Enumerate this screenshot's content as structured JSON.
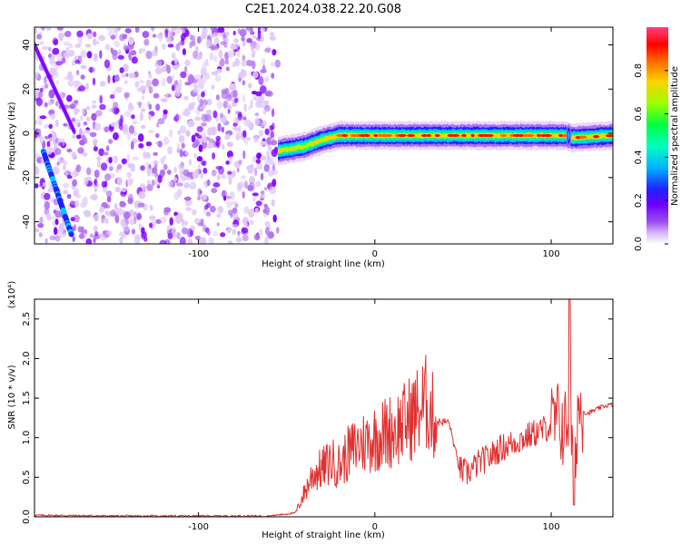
{
  "title": "C2E1.2024.038.22.20.G08",
  "colors": {
    "snr_line": "#e03030",
    "colormap": [
      "#ffffff",
      "#e0c8f8",
      "#b070f0",
      "#8000ff",
      "#2020ff",
      "#00c8ff",
      "#00ff80",
      "#a0ff00",
      "#ffd000",
      "#ff6000",
      "#ff0000",
      "#ff60a0"
    ]
  },
  "chart_data": [
    {
      "type": "heatmap",
      "xlabel": "Height of straight line (km)",
      "ylabel": "Frequency (Hz)",
      "xlim": [
        -193,
        135
      ],
      "ylim": [
        -50,
        48
      ],
      "xticks": [
        -100,
        0,
        100
      ],
      "yticks": [
        -40,
        -20,
        0,
        20,
        40
      ],
      "grid": false,
      "features": {
        "noise_region_x": [
          -193,
          -55
        ],
        "band_center_hz": [
          [
            -55,
            -8
          ],
          [
            -40,
            -6
          ],
          [
            -30,
            -3
          ],
          [
            -20,
            -1
          ],
          [
            0,
            -1
          ],
          [
            50,
            -1
          ],
          [
            100,
            -1
          ],
          [
            108,
            -1
          ],
          [
            112,
            -2
          ],
          [
            135,
            -1
          ]
        ],
        "band_peak_x": [
          -25,
          110
        ],
        "diagonal_streak": [
          [
            -193,
            40
          ],
          [
            -170,
            0
          ],
          [
            -170,
            0
          ]
        ],
        "bright_streak": [
          [
            -188,
            -8
          ],
          [
            -172,
            -46
          ]
        ]
      },
      "colorbar": {
        "label": "Normalized spectral amplitude",
        "range": [
          0.0,
          1.0
        ],
        "ticks": [
          "0.0",
          "0.2",
          "0.4",
          "0.6",
          "0.8"
        ]
      }
    },
    {
      "type": "line",
      "xlabel": "Height of straight line (km)",
      "ylabel": "SNR (10 * v/v)",
      "ymultiplier": "(x10⁴)",
      "xlim": [
        -193,
        135
      ],
      "ylim": [
        0,
        2.75
      ],
      "xticks": [
        -100,
        0,
        100
      ],
      "yticks": [
        "0.0",
        "0.5",
        "1.0",
        "1.5",
        "2.0",
        "2.5"
      ],
      "ytick_values": [
        0,
        0.5,
        1.0,
        1.5,
        2.0,
        2.5
      ],
      "grid": false,
      "series": [
        {
          "values_summary": "noisy SNR trace",
          "x": [
            -193,
            -150,
            -100,
            -60,
            -45,
            -40,
            -35,
            -30,
            -25,
            -20,
            -15,
            -10,
            -5,
            0,
            5,
            10,
            15,
            20,
            25,
            30,
            32,
            35,
            40,
            42,
            45,
            48,
            52,
            55,
            60,
            65,
            70,
            75,
            80,
            85,
            90,
            95,
            100,
            105,
            108,
            110,
            112,
            113,
            115,
            118,
            120,
            125,
            130,
            135
          ],
          "y": [
            0.02,
            0.01,
            0.01,
            0.01,
            0.05,
            0.3,
            0.55,
            0.6,
            0.7,
            0.65,
            0.8,
            0.9,
            0.95,
            1.0,
            1.05,
            1.1,
            1.15,
            1.25,
            1.35,
            1.45,
            1.3,
            1.2,
            1.2,
            1.2,
            0.9,
            0.6,
            0.55,
            0.6,
            0.7,
            0.75,
            0.85,
            0.9,
            0.95,
            1.0,
            1.05,
            1.1,
            1.15,
            1.2,
            1.1,
            1.3,
            1.0,
            0.2,
            1.4,
            1.35,
            1.3,
            1.35,
            1.4,
            1.42
          ]
        }
      ]
    }
  ]
}
